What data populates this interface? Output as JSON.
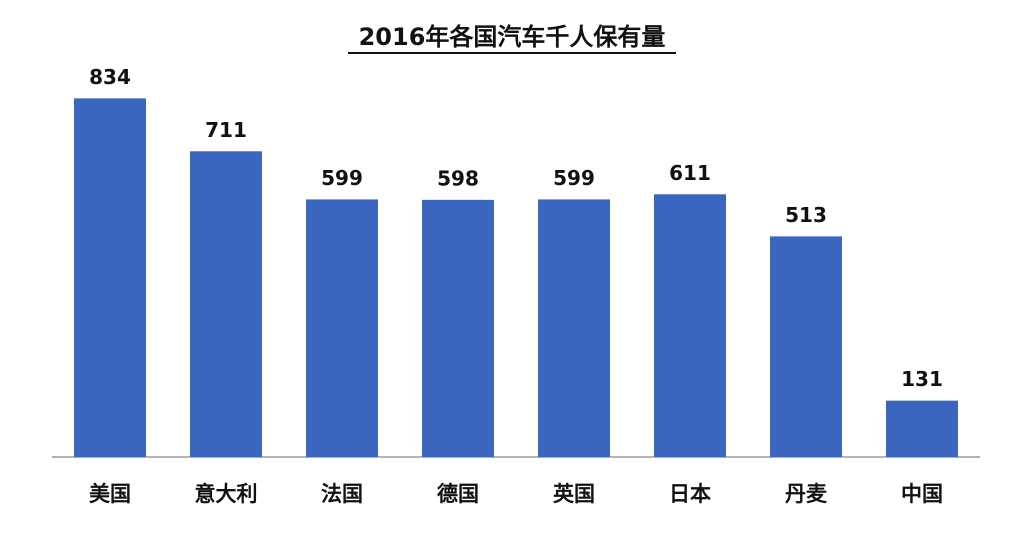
{
  "chart_data": {
    "type": "bar",
    "title": "2016年各国汽车千人保有量",
    "categories": [
      "美国",
      "意大利",
      "法国",
      "德国",
      "英国",
      "日本",
      "丹麦",
      "中国"
    ],
    "values": [
      834,
      711,
      599,
      598,
      599,
      611,
      513,
      131
    ],
    "color": "#3a66c0",
    "ylim": [
      0,
      900
    ]
  }
}
